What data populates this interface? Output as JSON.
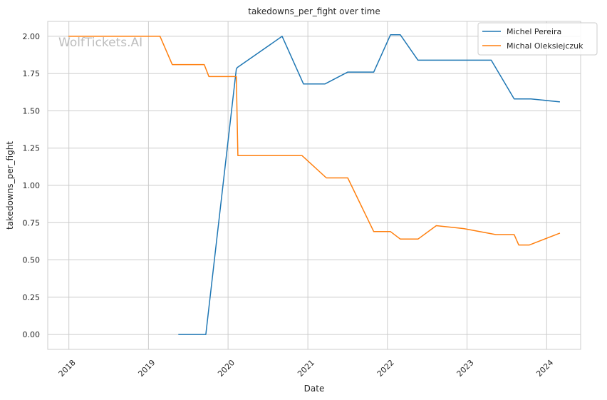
{
  "chart_data": {
    "type": "line",
    "title": "takedowns_per_fight over time",
    "xlabel": "Date",
    "ylabel": "takedowns_per_fight",
    "watermark": "WolfTickets.AI",
    "x_axis": {
      "scale": "time",
      "range": [
        "2017-09-26",
        "2024-06-05"
      ],
      "ticks": [
        "2018",
        "2019",
        "2020",
        "2021",
        "2022",
        "2023",
        "2024"
      ]
    },
    "y_axis": {
      "range": [
        -0.1,
        2.1
      ],
      "ticks": [
        "0.00",
        "0.25",
        "0.50",
        "0.75",
        "1.00",
        "1.25",
        "1.50",
        "1.75",
        "2.00"
      ],
      "tick_values": [
        0,
        0.25,
        0.5,
        0.75,
        1.0,
        1.25,
        1.5,
        1.75,
        2.0
      ]
    },
    "grid": true,
    "legend_position": "top-right",
    "series": [
      {
        "name": "Michel Pereira",
        "color": "#1f77b4",
        "points": [
          [
            "2019-05-18",
            0.0
          ],
          [
            "2019-09-21",
            0.0
          ],
          [
            "2020-02-08",
            1.78
          ],
          [
            "2020-02-12",
            1.79
          ],
          [
            "2020-09-05",
            2.0
          ],
          [
            "2020-12-12",
            1.68
          ],
          [
            "2021-03-20",
            1.68
          ],
          [
            "2021-07-03",
            1.76
          ],
          [
            "2021-10-30",
            1.76
          ],
          [
            "2022-01-15",
            2.01
          ],
          [
            "2022-03-01",
            2.01
          ],
          [
            "2022-05-21",
            1.84
          ],
          [
            "2023-04-22",
            1.84
          ],
          [
            "2023-08-05",
            1.58
          ],
          [
            "2023-10-21",
            1.58
          ],
          [
            "2024-03-02",
            1.56
          ]
        ]
      },
      {
        "name": "Michal Oleksiejczuk",
        "color": "#ff7f0e",
        "points": [
          [
            "2017-12-30",
            2.0
          ],
          [
            "2019-02-23",
            2.0
          ],
          [
            "2019-04-20",
            1.81
          ],
          [
            "2019-09-14",
            1.81
          ],
          [
            "2019-10-05",
            1.73
          ],
          [
            "2020-02-08",
            1.73
          ],
          [
            "2020-02-15",
            1.2
          ],
          [
            "2020-12-05",
            1.2
          ],
          [
            "2021-03-27",
            1.05
          ],
          [
            "2021-07-03",
            1.05
          ],
          [
            "2021-10-30",
            0.69
          ],
          [
            "2022-01-15",
            0.69
          ],
          [
            "2022-03-01",
            0.64
          ],
          [
            "2022-05-21",
            0.64
          ],
          [
            "2022-08-13",
            0.73
          ],
          [
            "2022-12-17",
            0.71
          ],
          [
            "2023-05-13",
            0.67
          ],
          [
            "2023-08-05",
            0.67
          ],
          [
            "2023-08-26",
            0.6
          ],
          [
            "2023-10-14",
            0.6
          ],
          [
            "2024-03-02",
            0.68
          ]
        ]
      }
    ]
  }
}
